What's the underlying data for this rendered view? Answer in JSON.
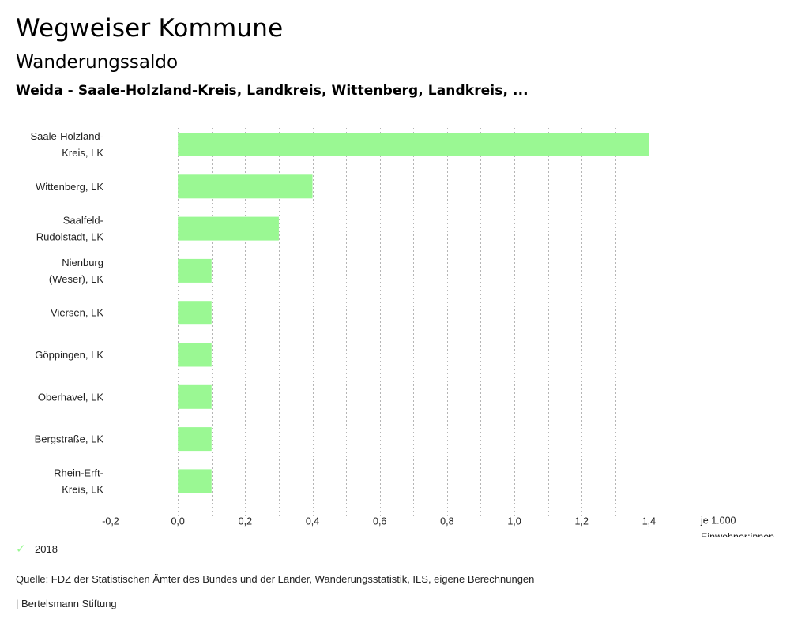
{
  "header": {
    "title": "Wegweiser Kommune",
    "subtitle": "Wanderungssaldo",
    "selection": "Weida - Saale-Holzland-Kreis, Landkreis, Wittenberg, Landkreis, ..."
  },
  "chart_data": {
    "type": "bar",
    "orientation": "horizontal",
    "title": "Wanderungssaldo",
    "categories": [
      [
        "Saale-Holzland-",
        "Kreis, LK"
      ],
      [
        "Wittenberg, LK"
      ],
      [
        "Saalfeld-",
        "Rudolstadt, LK"
      ],
      [
        "Nienburg",
        "(Weser), LK"
      ],
      [
        "Viersen, LK"
      ],
      [
        "Göppingen, LK"
      ],
      [
        "Oberhavel, LK"
      ],
      [
        "Bergstraße, LK"
      ],
      [
        "Rhein-Erft-",
        "Kreis, LK"
      ]
    ],
    "series": [
      {
        "name": "2018",
        "color": "#9AF893",
        "values": [
          1.4,
          0.4,
          0.3,
          0.1,
          0.1,
          0.1,
          0.1,
          0.1,
          0.1
        ]
      }
    ],
    "xlim": [
      -0.2,
      1.5
    ],
    "xticks": [
      -0.2,
      0.0,
      0.2,
      0.4,
      0.6,
      0.8,
      1.0,
      1.2,
      1.4
    ],
    "xtick_labels": [
      "-0,2",
      "0,0",
      "0,2",
      "0,4",
      "0,6",
      "0,8",
      "1,0",
      "1,2",
      "1,4"
    ],
    "gridlines": [
      -0.2,
      -0.1,
      0.0,
      0.1,
      0.2,
      0.3,
      0.4,
      0.5,
      0.6,
      0.7,
      0.8,
      0.9,
      1.0,
      1.1,
      1.2,
      1.3,
      1.4,
      1.5
    ],
    "grid": true,
    "grid_style": "dotted-vertical",
    "xlabel": [
      "je 1.000",
      "Einwohner:innen"
    ],
    "ylabel": "",
    "legend_position": "bottom-left"
  },
  "legend": {
    "label": "2018",
    "icon": "check-icon"
  },
  "footer": {
    "source": "Quelle: FDZ der Statistischen Ämter des Bundes und der Länder, Wanderungsstatistik, ILS, eigene Berechnungen",
    "credit": "| Bertelsmann Stiftung"
  }
}
